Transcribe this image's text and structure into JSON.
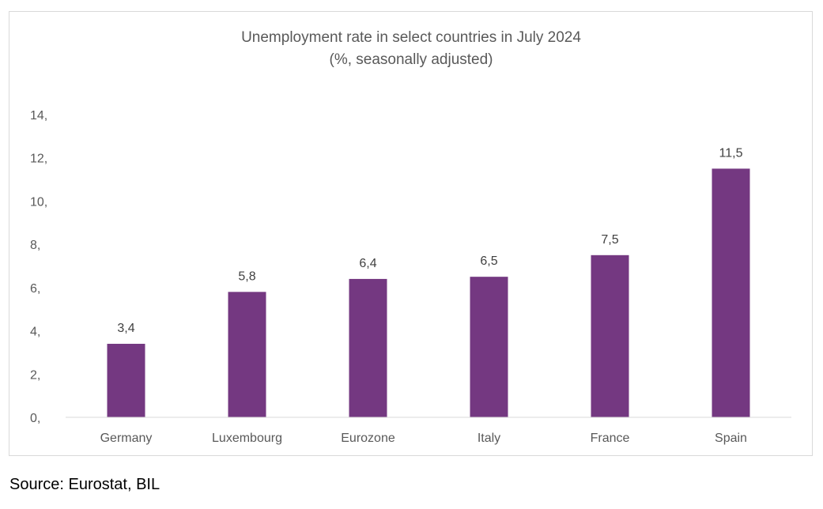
{
  "chart_data": {
    "type": "bar",
    "title": "Unemployment rate in select countries in July 2024",
    "subtitle": "(%, seasonally adjusted)",
    "categories": [
      "Germany",
      "Luxembourg",
      "Eurozone",
      "Italy",
      "France",
      "Spain"
    ],
    "values": [
      3.4,
      5.8,
      6.4,
      6.5,
      7.5,
      11.5
    ],
    "data_labels": [
      "3,4",
      "5,8",
      "6,4",
      "6,5",
      "7,5",
      "11,5"
    ],
    "yticks": [
      0,
      2,
      4,
      6,
      8,
      10,
      12,
      14
    ],
    "ytick_labels": [
      "0,",
      "2,",
      "4,",
      "6,",
      "8,",
      "10,",
      "12,",
      "14,"
    ],
    "ylim": [
      0,
      14
    ],
    "xlabel": "",
    "ylabel": "",
    "grid": false,
    "legend": "none",
    "bar_color": "#743881",
    "axis_color": "#d9d9d9"
  },
  "source": "Source: Eurostat, BIL"
}
